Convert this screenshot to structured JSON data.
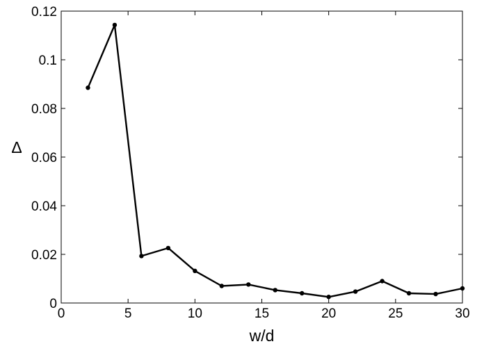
{
  "chart_data": {
    "type": "line",
    "xlabel": "w/d",
    "ylabel": "Δ",
    "xlim": [
      0,
      30
    ],
    "ylim": [
      0,
      0.12
    ],
    "xticks": [
      0,
      5,
      10,
      15,
      20,
      25,
      30
    ],
    "xtick_labels": [
      "0",
      "5",
      "10",
      "15",
      "20",
      "25",
      "30"
    ],
    "yticks": [
      0,
      0.02,
      0.04,
      0.06,
      0.08,
      0.1,
      0.12
    ],
    "ytick_labels": [
      "0",
      "0.02",
      "0.04",
      "0.06",
      "0.08",
      "0.1",
      "0.12"
    ],
    "grid": false,
    "line_color": "#000000",
    "marker": "circle",
    "series": [
      {
        "x": [
          2,
          4,
          6,
          8,
          10,
          12,
          14,
          16,
          18,
          20,
          22,
          24,
          26,
          28,
          30
        ],
        "y": [
          0.0885,
          0.1143,
          0.0193,
          0.0226,
          0.0132,
          0.007,
          0.0076,
          0.0053,
          0.004,
          0.0025,
          0.0047,
          0.009,
          0.004,
          0.0037,
          0.006
        ]
      }
    ]
  }
}
